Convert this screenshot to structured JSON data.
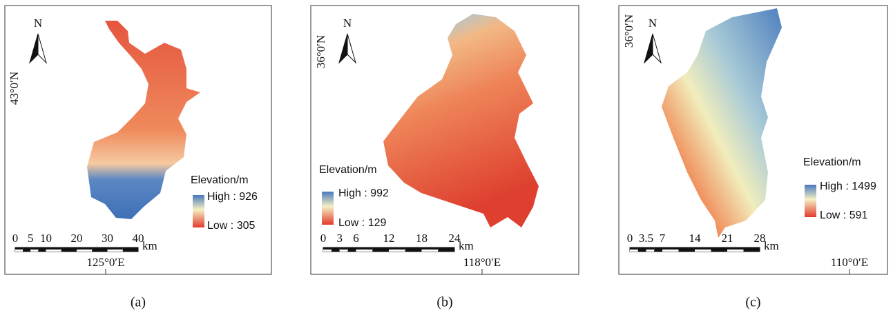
{
  "panels": [
    {
      "caption": "(a)",
      "north": "N",
      "latitude": "43°0′N",
      "longitude": "125°0′E",
      "legend": {
        "title": "Elevation/m",
        "high": "High : 926",
        "low": "Low : 305"
      },
      "scale": {
        "ticks": [
          0,
          5,
          10,
          20,
          30,
          40
        ],
        "unit": "km"
      }
    },
    {
      "caption": "(b)",
      "north": "N",
      "latitude": "36°0′N",
      "longitude": "118°0′E",
      "legend": {
        "title": "Elevation/m",
        "high": "High : 992",
        "low": "Low : 129"
      },
      "scale": {
        "ticks": [
          0,
          3,
          6,
          12,
          18,
          24
        ],
        "unit": "km"
      }
    },
    {
      "caption": "(c)",
      "north": "N",
      "latitude": "36°0′N",
      "longitude": "110°0′E",
      "legend": {
        "title": "Elevation/m",
        "high": "High : 1499",
        "low": "Low : 591"
      },
      "scale": {
        "ticks": [
          0,
          3.5,
          7,
          14,
          21,
          28
        ],
        "unit": "km"
      }
    }
  ]
}
